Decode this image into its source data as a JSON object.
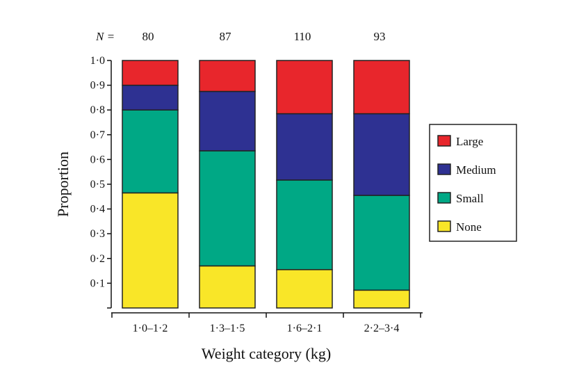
{
  "chart_data": {
    "type": "bar",
    "stacked": true,
    "categories": [
      "1·0–1·2",
      "1·3–1·5",
      "1·6–2·1",
      "2·2–3·4"
    ],
    "sample_sizes": [
      "80",
      "87",
      "110",
      "93"
    ],
    "n_prefix": "N =",
    "series": [
      {
        "name": "None",
        "color": "#f9e628",
        "values": [
          0.465,
          0.17,
          0.155,
          0.072
        ]
      },
      {
        "name": "Small",
        "color": "#00a885",
        "values": [
          0.335,
          0.465,
          0.362,
          0.383
        ]
      },
      {
        "name": "Medium",
        "color": "#2e3192",
        "values": [
          0.1,
          0.24,
          0.268,
          0.33
        ]
      },
      {
        "name": "Large",
        "color": "#e8262c",
        "values": [
          0.1,
          0.125,
          0.215,
          0.215
        ]
      }
    ],
    "legend_order": [
      "Large",
      "Medium",
      "Small",
      "None"
    ],
    "legend_position": "right",
    "xlabel": "Weight category (kg)",
    "ylabel": "Proportion",
    "ylim": [
      0,
      1
    ],
    "yticks": [
      "0·1",
      "0·2",
      "0·3",
      "0·4",
      "0·5",
      "0·6",
      "0·7",
      "0·8",
      "0·9",
      "1·0"
    ],
    "grid": false
  }
}
